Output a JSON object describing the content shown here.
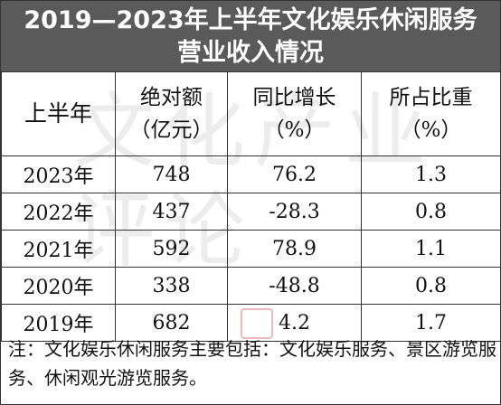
{
  "title": {
    "line1": "2019—2023年上半年文化娱乐休闲服务",
    "line2": "营业收入情况"
  },
  "watermark": "文化产业评论",
  "header": {
    "col1": "上半年",
    "col2_main": "绝对额",
    "col2_sub": "（亿元）",
    "col3_main": "同比增长",
    "col3_sub": "（%）",
    "col4_main": "所占比重",
    "col4_sub": "（%）"
  },
  "rows": [
    {
      "year": "2023年",
      "amount": "748",
      "growth": "76.2",
      "share": "1.3"
    },
    {
      "year": "2022年",
      "amount": "437",
      "growth": "-28.3",
      "share": "0.8"
    },
    {
      "year": "2021年",
      "amount": "592",
      "growth": "78.9",
      "share": "1.1"
    },
    {
      "year": "2020年",
      "amount": "338",
      "growth": "-48.8",
      "share": "0.8"
    },
    {
      "year": "2019年",
      "amount": "682",
      "growth": "4.2",
      "share": "1.7"
    }
  ],
  "note": "注：文化娱乐休闲服务主要包括：文化娱乐服务、景区游览服务、休闲观光游览服务。",
  "colors": {
    "title_bg": "#5a5a5a",
    "title_text": "#ffffff",
    "border": "#333333"
  }
}
